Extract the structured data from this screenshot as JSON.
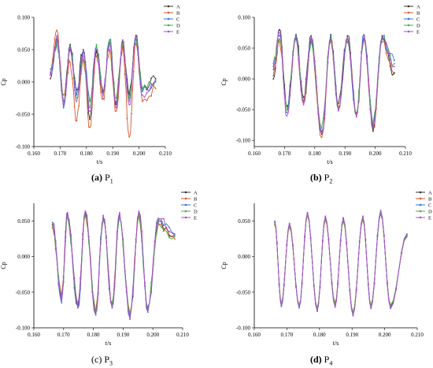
{
  "captions": [
    {
      "letter": "(a)",
      "name": "P",
      "sub": "1"
    },
    {
      "letter": "(b)",
      "name": "P",
      "sub": "2"
    },
    {
      "letter": "(c)",
      "name": "P",
      "sub": "3"
    },
    {
      "letter": "(d)",
      "name": "P",
      "sub": "4"
    }
  ],
  "colors": {
    "A": "#333333",
    "B": "#d9572e",
    "C": "#3a6fd8",
    "D": "#43b04a",
    "E": "#b14ad1"
  },
  "chart_data": [
    {
      "type": "line",
      "panel": "a",
      "style": "noisy",
      "title": "",
      "xlabel": "t/s",
      "ylabel": "Cp",
      "xlim": [
        0.16,
        0.21
      ],
      "ylim": [
        -0.1,
        0.1
      ],
      "xticks": [
        "0.160",
        "0.170",
        "0.180",
        "0.190",
        "0.200",
        "0.210"
      ],
      "yticks": [
        "0.100",
        "0.050",
        "0.000",
        "-0.050",
        "-0.100"
      ],
      "legend": [
        "A",
        "B",
        "C",
        "D",
        "E"
      ],
      "legend_position": "top-right",
      "series": [
        {
          "name": "A",
          "x": [
            0.1663,
            0.1688,
            0.1713,
            0.1738,
            0.1763,
            0.1788,
            0.1813,
            0.1838,
            0.1863,
            0.1888,
            0.1913,
            0.1938,
            0.1963,
            0.1988,
            0.2013,
            0.2063
          ],
          "y": [
            0.005,
            0.07,
            -0.03,
            0.058,
            -0.012,
            0.05,
            -0.058,
            0.048,
            -0.015,
            0.06,
            -0.035,
            0.062,
            -0.02,
            0.072,
            -0.01,
            0.005
          ]
        },
        {
          "name": "B",
          "x": [
            0.1663,
            0.1688,
            0.1713,
            0.1738,
            0.1763,
            0.1788,
            0.1813,
            0.1838,
            0.1863,
            0.1888,
            0.1913,
            0.1938,
            0.1963,
            0.1988,
            0.2013,
            0.2063
          ],
          "y": [
            0.01,
            0.08,
            -0.02,
            0.03,
            -0.06,
            0.035,
            -0.07,
            0.04,
            -0.025,
            0.05,
            -0.045,
            0.055,
            -0.085,
            0.06,
            -0.03,
            -0.01
          ]
        },
        {
          "name": "C",
          "x": [
            0.1663,
            0.1688,
            0.1713,
            0.1738,
            0.1763,
            0.1788,
            0.1813,
            0.1838,
            0.1863,
            0.1888,
            0.1913,
            0.1938,
            0.1963,
            0.1988,
            0.2013,
            0.2063
          ],
          "y": [
            0.015,
            0.065,
            -0.04,
            0.05,
            -0.02,
            0.045,
            -0.03,
            0.055,
            -0.02,
            0.065,
            -0.03,
            0.06,
            -0.025,
            0.07,
            -0.015,
            0.0
          ]
        },
        {
          "name": "D",
          "x": [
            0.1663,
            0.1688,
            0.1713,
            0.1738,
            0.1763,
            0.1788,
            0.1813,
            0.1838,
            0.1863,
            0.1888,
            0.1913,
            0.1938,
            0.1963,
            0.1988,
            0.2013,
            0.2063
          ],
          "y": [
            0.02,
            0.06,
            -0.03,
            0.055,
            -0.025,
            0.04,
            -0.04,
            0.058,
            -0.018,
            0.065,
            -0.025,
            0.06,
            -0.03,
            0.068,
            -0.012,
            0.002
          ]
        },
        {
          "name": "E",
          "x": [
            0.1663,
            0.1688,
            0.1713,
            0.1738,
            0.1763,
            0.1788,
            0.1813,
            0.1838,
            0.1863,
            0.1888,
            0.1913,
            0.1938,
            0.1963,
            0.1988,
            0.2013,
            0.2063
          ],
          "y": [
            0.012,
            0.072,
            -0.035,
            0.052,
            -0.03,
            0.048,
            -0.045,
            0.05,
            -0.022,
            0.062,
            -0.04,
            0.065,
            -0.035,
            0.07,
            -0.02,
            0.004
          ]
        }
      ]
    },
    {
      "type": "line",
      "panel": "b",
      "style": "noisy",
      "title": "",
      "xlabel": "t/s",
      "ylabel": "Cp",
      "xlim": [
        0.16,
        0.21
      ],
      "ylim": [
        -0.11,
        0.1
      ],
      "xticks": [
        "0.160",
        "0.170",
        "0.180",
        "0.190",
        "0.200",
        "0.210"
      ],
      "yticks": [
        "0.100",
        "0.050",
        "0.000",
        "-0.050",
        "-0.100"
      ],
      "legend": [
        "A",
        "B",
        "C",
        "D",
        "E"
      ],
      "legend_position": "top-right",
      "series": [
        {
          "name": "A",
          "x": [
            0.1663,
            0.1683,
            0.1708,
            0.1738,
            0.1763,
            0.1788,
            0.1823,
            0.1853,
            0.1878,
            0.1908,
            0.1938,
            0.1963,
            0.1993,
            0.2023,
            0.2063
          ],
          "y": [
            0.0,
            0.08,
            -0.045,
            0.072,
            -0.03,
            0.07,
            -0.09,
            0.072,
            -0.04,
            0.07,
            -0.06,
            0.07,
            -0.085,
            0.07,
            0.01
          ]
        },
        {
          "name": "B",
          "x": [
            0.1663,
            0.1683,
            0.1708,
            0.1738,
            0.1763,
            0.1788,
            0.1823,
            0.1853,
            0.1878,
            0.1908,
            0.1938,
            0.1963,
            0.1993,
            0.2023,
            0.2063
          ],
          "y": [
            0.005,
            0.06,
            -0.05,
            0.065,
            -0.04,
            0.06,
            -0.095,
            0.062,
            -0.045,
            0.06,
            -0.055,
            0.065,
            -0.08,
            0.06,
            0.008
          ]
        },
        {
          "name": "C",
          "x": [
            0.1663,
            0.1683,
            0.1708,
            0.1738,
            0.1763,
            0.1788,
            0.1823,
            0.1853,
            0.1878,
            0.1908,
            0.1938,
            0.1963,
            0.1993,
            0.2023,
            0.2063
          ],
          "y": [
            0.02,
            0.07,
            -0.055,
            0.07,
            -0.035,
            0.065,
            -0.085,
            0.068,
            -0.05,
            0.066,
            -0.06,
            0.072,
            -0.075,
            0.066,
            0.03
          ]
        },
        {
          "name": "D",
          "x": [
            0.1663,
            0.1683,
            0.1708,
            0.1738,
            0.1763,
            0.1788,
            0.1823,
            0.1853,
            0.1878,
            0.1908,
            0.1938,
            0.1963,
            0.1993,
            0.2023,
            0.2063
          ],
          "y": [
            0.025,
            0.065,
            -0.05,
            0.068,
            -0.038,
            0.062,
            -0.08,
            0.066,
            -0.048,
            0.064,
            -0.058,
            0.068,
            -0.072,
            0.064,
            0.025
          ]
        },
        {
          "name": "E",
          "x": [
            0.1663,
            0.1683,
            0.1708,
            0.1738,
            0.1763,
            0.1788,
            0.1823,
            0.1853,
            0.1878,
            0.1908,
            0.1938,
            0.1963,
            0.1993,
            0.2023,
            0.2063
          ],
          "y": [
            0.015,
            0.075,
            -0.06,
            0.066,
            -0.042,
            0.068,
            -0.088,
            0.064,
            -0.052,
            0.068,
            -0.062,
            0.07,
            -0.078,
            0.068,
            0.02
          ]
        }
      ]
    },
    {
      "type": "line",
      "panel": "c",
      "style": "noisy",
      "title": "",
      "xlabel": "t/s",
      "ylabel": "Cp",
      "xlim": [
        0.16,
        0.21
      ],
      "ylim": [
        -0.1,
        0.075
      ],
      "xticks": [
        "0.160",
        "0.170",
        "0.180",
        "0.190",
        "0.200",
        "0.210"
      ],
      "yticks": [
        "0.050",
        "0.000",
        "-0.050",
        "-0.100"
      ],
      "legend": [
        "A",
        "B",
        "C",
        "D",
        "E"
      ],
      "legend_position": "top-right",
      "series": [
        {
          "name": "A",
          "x": [
            0.1663,
            0.1693,
            0.1713,
            0.1748,
            0.1773,
            0.1808,
            0.1833,
            0.1863,
            0.1888,
            0.1923,
            0.1953,
            0.1983,
            0.2018,
            0.2073
          ],
          "y": [
            0.045,
            -0.06,
            0.06,
            -0.07,
            0.062,
            -0.08,
            0.055,
            -0.07,
            0.058,
            -0.085,
            0.06,
            -0.075,
            0.05,
            0.03
          ]
        },
        {
          "name": "B",
          "x": [
            0.1663,
            0.1693,
            0.1713,
            0.1748,
            0.1773,
            0.1808,
            0.1833,
            0.1863,
            0.1888,
            0.1923,
            0.1953,
            0.1983,
            0.2018,
            0.2073
          ],
          "y": [
            0.04,
            -0.055,
            0.055,
            -0.065,
            0.058,
            -0.075,
            0.05,
            -0.065,
            0.055,
            -0.08,
            0.058,
            -0.07,
            0.045,
            0.025
          ]
        },
        {
          "name": "C",
          "x": [
            0.1663,
            0.1693,
            0.1713,
            0.1748,
            0.1773,
            0.1808,
            0.1833,
            0.1863,
            0.1888,
            0.1923,
            0.1953,
            0.1983,
            0.2018,
            0.2073
          ],
          "y": [
            0.048,
            -0.065,
            0.058,
            -0.072,
            0.06,
            -0.082,
            0.056,
            -0.072,
            0.06,
            -0.088,
            0.062,
            -0.078,
            0.052,
            0.032
          ]
        },
        {
          "name": "D",
          "x": [
            0.1663,
            0.1693,
            0.1713,
            0.1748,
            0.1773,
            0.1808,
            0.1833,
            0.1863,
            0.1888,
            0.1923,
            0.1953,
            0.1983,
            0.2018,
            0.2073
          ],
          "y": [
            0.042,
            -0.058,
            0.056,
            -0.068,
            0.059,
            -0.078,
            0.052,
            -0.068,
            0.056,
            -0.082,
            0.059,
            -0.072,
            0.048,
            0.028
          ]
        },
        {
          "name": "E",
          "x": [
            0.1663,
            0.1693,
            0.1713,
            0.1748,
            0.1773,
            0.1808,
            0.1833,
            0.1863,
            0.1888,
            0.1923,
            0.1953,
            0.1983,
            0.2018,
            0.2073
          ],
          "y": [
            0.046,
            -0.062,
            0.062,
            -0.07,
            0.064,
            -0.08,
            0.058,
            -0.07,
            0.062,
            -0.086,
            0.064,
            -0.076,
            0.054,
            0.03
          ]
        }
      ]
    },
    {
      "type": "line",
      "panel": "d",
      "style": "smooth",
      "title": "",
      "xlabel": "t/s",
      "ylabel": "Cp",
      "xlim": [
        0.16,
        0.21
      ],
      "ylim": [
        -0.1,
        0.075
      ],
      "xticks": [
        "0.160",
        "0.170",
        "0.180",
        "0.190",
        "0.200",
        "0.210"
      ],
      "yticks": [
        "0.050",
        "0.000",
        "-0.050",
        "-0.100"
      ],
      "legend": [
        "A",
        "B",
        "C",
        "D",
        "E"
      ],
      "legend_position": "top-right",
      "series": [
        {
          "name": "A",
          "x": [
            0.1663,
            0.1683,
            0.1708,
            0.1738,
            0.1763,
            0.1793,
            0.1818,
            0.1848,
            0.1873,
            0.1903,
            0.1933,
            0.1958,
            0.1988,
            0.2018,
            0.2068
          ],
          "y": [
            0.048,
            -0.068,
            0.045,
            -0.07,
            0.06,
            -0.075,
            0.055,
            -0.068,
            0.052,
            -0.08,
            0.055,
            -0.07,
            0.062,
            -0.07,
            0.03
          ]
        },
        {
          "name": "B",
          "x": [
            0.1663,
            0.1683,
            0.1708,
            0.1738,
            0.1763,
            0.1793,
            0.1818,
            0.1848,
            0.1873,
            0.1903,
            0.1933,
            0.1958,
            0.1988,
            0.2018,
            0.2068
          ],
          "y": [
            0.045,
            -0.065,
            0.042,
            -0.068,
            0.058,
            -0.072,
            0.052,
            -0.065,
            0.05,
            -0.078,
            0.052,
            -0.068,
            0.06,
            -0.068,
            0.028
          ]
        },
        {
          "name": "C",
          "x": [
            0.1663,
            0.1683,
            0.1708,
            0.1738,
            0.1763,
            0.1793,
            0.1818,
            0.1848,
            0.1873,
            0.1903,
            0.1933,
            0.1958,
            0.1988,
            0.2018,
            0.2068
          ],
          "y": [
            0.05,
            -0.07,
            0.046,
            -0.072,
            0.061,
            -0.076,
            0.056,
            -0.07,
            0.054,
            -0.082,
            0.056,
            -0.072,
            0.064,
            -0.072,
            0.032
          ]
        },
        {
          "name": "D",
          "x": [
            0.1663,
            0.1683,
            0.1708,
            0.1738,
            0.1763,
            0.1793,
            0.1818,
            0.1848,
            0.1873,
            0.1903,
            0.1933,
            0.1958,
            0.1988,
            0.2018,
            0.2068
          ],
          "y": [
            0.046,
            -0.066,
            0.044,
            -0.069,
            0.059,
            -0.073,
            0.054,
            -0.067,
            0.051,
            -0.079,
            0.054,
            -0.069,
            0.061,
            -0.069,
            0.029
          ]
        },
        {
          "name": "E",
          "x": [
            0.1663,
            0.1683,
            0.1708,
            0.1738,
            0.1763,
            0.1793,
            0.1818,
            0.1848,
            0.1873,
            0.1903,
            0.1933,
            0.1958,
            0.1988,
            0.2018,
            0.2068
          ],
          "y": [
            0.049,
            -0.069,
            0.047,
            -0.071,
            0.062,
            -0.077,
            0.057,
            -0.071,
            0.055,
            -0.083,
            0.057,
            -0.073,
            0.065,
            -0.073,
            0.031
          ]
        }
      ]
    }
  ]
}
